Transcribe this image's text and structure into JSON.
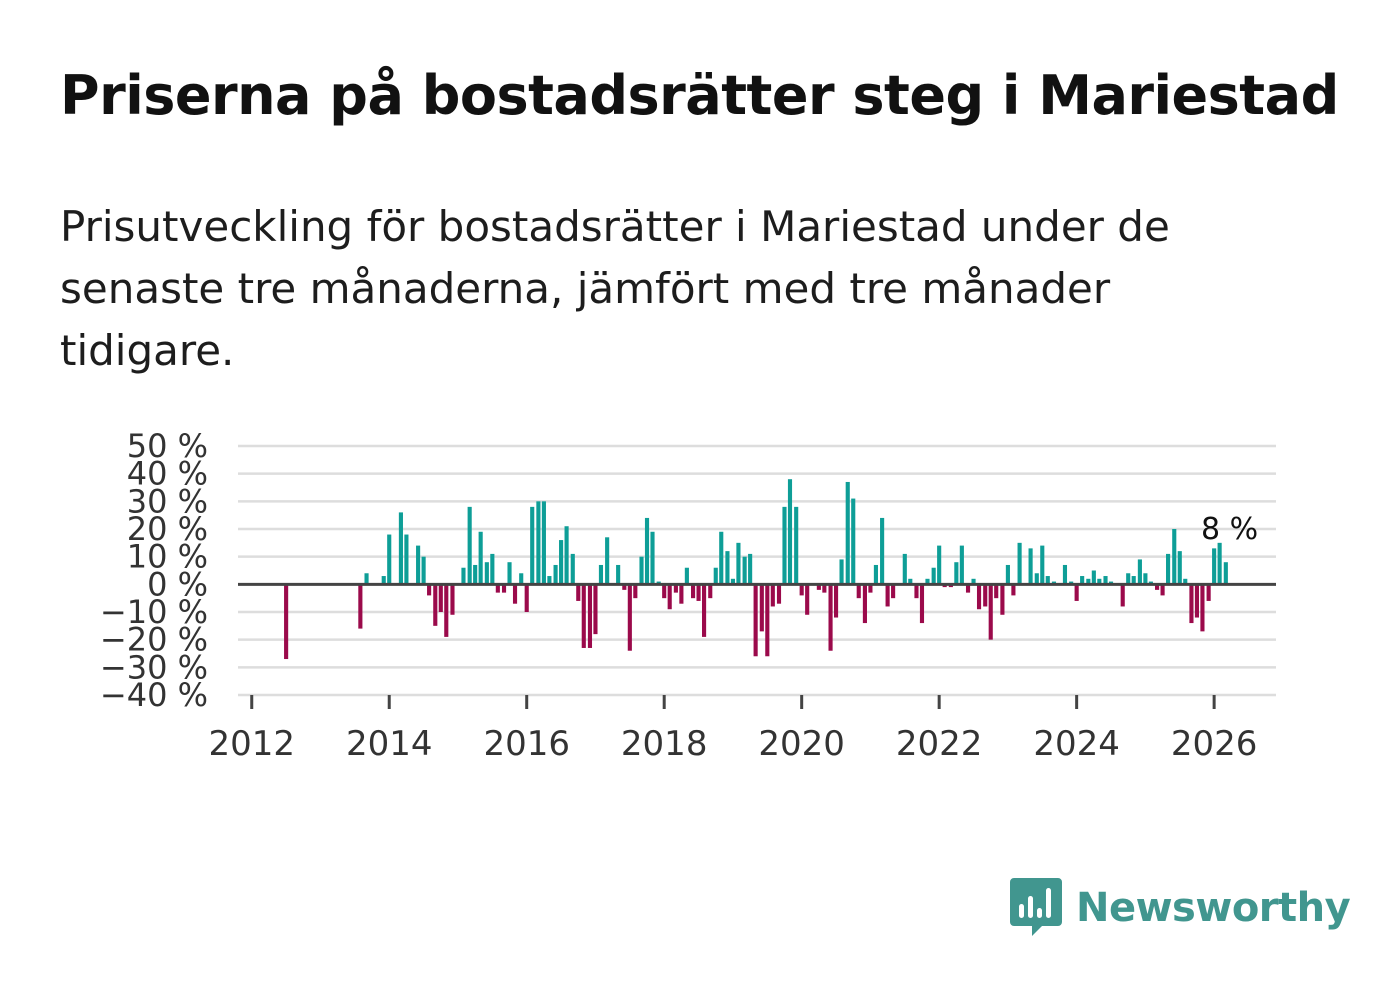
{
  "title": "Priserna på bostadsrätter steg i Mariestad",
  "subtitle": "Prisutveckling för bostadsrätter i Mariestad under de senaste tre månaderna, jämfört med tre månader tidigare.",
  "brand": {
    "name": "Newsworthy",
    "icon": "bar-chart-speech-bubble-icon",
    "color": "#41968f"
  },
  "colors": {
    "positive": "#0e9e97",
    "negative": "#9b0a4b",
    "grid": "#dddddd",
    "zero": "#444444",
    "text": "#333333"
  },
  "chart_data": {
    "type": "bar",
    "title": "Priserna på bostadsrätter steg i Mariestad",
    "ylabel": "",
    "xlabel": "",
    "ylim": [
      -40,
      50
    ],
    "xlim": [
      2011.8,
      2026.9
    ],
    "yticks": [
      -40,
      -30,
      -20,
      -10,
      0,
      10,
      20,
      30,
      40,
      50
    ],
    "ytick_labels": [
      "−40 %",
      "−30 %",
      "−20 %",
      "−10 %",
      "0 %",
      "10 %",
      "20 %",
      "30 %",
      "40 %",
      "50 %"
    ],
    "xticks": [
      2012,
      2014,
      2016,
      2018,
      2020,
      2022,
      2024,
      2026
    ],
    "xtick_labels": [
      "2012",
      "2014",
      "2016",
      "2018",
      "2020",
      "2022",
      "2024",
      "2026"
    ],
    "annotation": {
      "text": "8 %",
      "x": 2026.08,
      "y": 8
    },
    "grid": true,
    "series": [
      {
        "name": "Prisutveckling",
        "points": [
          [
            2012.5,
            -27
          ],
          [
            2013.58,
            -16
          ],
          [
            2013.67,
            4
          ],
          [
            2013.92,
            3
          ],
          [
            2014.0,
            18
          ],
          [
            2014.17,
            26
          ],
          [
            2014.25,
            18
          ],
          [
            2014.42,
            14
          ],
          [
            2014.5,
            10
          ],
          [
            2014.58,
            -4
          ],
          [
            2014.67,
            -15
          ],
          [
            2014.75,
            -10
          ],
          [
            2014.83,
            -19
          ],
          [
            2014.92,
            -11
          ],
          [
            2015.08,
            6
          ],
          [
            2015.17,
            28
          ],
          [
            2015.25,
            7
          ],
          [
            2015.33,
            19
          ],
          [
            2015.42,
            8
          ],
          [
            2015.5,
            11
          ],
          [
            2015.58,
            -3
          ],
          [
            2015.67,
            -3
          ],
          [
            2015.75,
            8
          ],
          [
            2015.83,
            -7
          ],
          [
            2015.92,
            4
          ],
          [
            2016.0,
            -10
          ],
          [
            2016.08,
            28
          ],
          [
            2016.17,
            30
          ],
          [
            2016.25,
            30
          ],
          [
            2016.33,
            3
          ],
          [
            2016.42,
            7
          ],
          [
            2016.5,
            16
          ],
          [
            2016.58,
            21
          ],
          [
            2016.67,
            11
          ],
          [
            2016.75,
            -6
          ],
          [
            2016.83,
            -23
          ],
          [
            2016.92,
            -23
          ],
          [
            2017.0,
            -18
          ],
          [
            2017.08,
            7
          ],
          [
            2017.17,
            17
          ],
          [
            2017.33,
            7
          ],
          [
            2017.42,
            -2
          ],
          [
            2017.5,
            -24
          ],
          [
            2017.58,
            -5
          ],
          [
            2017.67,
            10
          ],
          [
            2017.75,
            24
          ],
          [
            2017.83,
            19
          ],
          [
            2017.92,
            1
          ],
          [
            2018.0,
            -5
          ],
          [
            2018.08,
            -9
          ],
          [
            2018.17,
            -3
          ],
          [
            2018.25,
            -7
          ],
          [
            2018.33,
            6
          ],
          [
            2018.42,
            -5
          ],
          [
            2018.5,
            -6
          ],
          [
            2018.58,
            -19
          ],
          [
            2018.67,
            -5
          ],
          [
            2018.75,
            6
          ],
          [
            2018.83,
            19
          ],
          [
            2018.92,
            12
          ],
          [
            2019.0,
            2
          ],
          [
            2019.08,
            15
          ],
          [
            2019.17,
            10
          ],
          [
            2019.25,
            11
          ],
          [
            2019.33,
            -26
          ],
          [
            2019.42,
            -17
          ],
          [
            2019.5,
            -26
          ],
          [
            2019.58,
            -8
          ],
          [
            2019.67,
            -7
          ],
          [
            2019.75,
            28
          ],
          [
            2019.83,
            38
          ],
          [
            2019.92,
            28
          ],
          [
            2020.0,
            -4
          ],
          [
            2020.08,
            -11
          ],
          [
            2020.25,
            -2
          ],
          [
            2020.33,
            -3
          ],
          [
            2020.42,
            -24
          ],
          [
            2020.5,
            -12
          ],
          [
            2020.58,
            9
          ],
          [
            2020.67,
            37
          ],
          [
            2020.75,
            31
          ],
          [
            2020.83,
            -5
          ],
          [
            2020.92,
            -14
          ],
          [
            2021.0,
            -3
          ],
          [
            2021.08,
            7
          ],
          [
            2021.17,
            24
          ],
          [
            2021.25,
            -8
          ],
          [
            2021.33,
            -5
          ],
          [
            2021.5,
            11
          ],
          [
            2021.58,
            2
          ],
          [
            2021.67,
            -5
          ],
          [
            2021.75,
            -14
          ],
          [
            2021.83,
            2
          ],
          [
            2021.92,
            6
          ],
          [
            2022.0,
            14
          ],
          [
            2022.08,
            -1
          ],
          [
            2022.17,
            -1
          ],
          [
            2022.25,
            8
          ],
          [
            2022.33,
            14
          ],
          [
            2022.42,
            -3
          ],
          [
            2022.5,
            2
          ],
          [
            2022.58,
            -9
          ],
          [
            2022.67,
            -8
          ],
          [
            2022.75,
            -20
          ],
          [
            2022.83,
            -5
          ],
          [
            2022.92,
            -11
          ],
          [
            2023.0,
            7
          ],
          [
            2023.08,
            -4
          ],
          [
            2023.17,
            15
          ],
          [
            2023.33,
            13
          ],
          [
            2023.42,
            4
          ],
          [
            2023.5,
            14
          ],
          [
            2023.58,
            3
          ],
          [
            2023.67,
            1
          ],
          [
            2023.83,
            7
          ],
          [
            2023.92,
            1
          ],
          [
            2024.0,
            -6
          ],
          [
            2024.08,
            3
          ],
          [
            2024.17,
            2
          ],
          [
            2024.25,
            5
          ],
          [
            2024.33,
            2
          ],
          [
            2024.42,
            3
          ],
          [
            2024.5,
            1
          ],
          [
            2024.67,
            -8
          ],
          [
            2024.75,
            4
          ],
          [
            2024.83,
            3
          ],
          [
            2024.92,
            9
          ],
          [
            2025.0,
            4
          ],
          [
            2025.08,
            1
          ],
          [
            2025.17,
            -2
          ],
          [
            2025.25,
            -4
          ],
          [
            2025.33,
            11
          ],
          [
            2025.42,
            20
          ],
          [
            2025.5,
            12
          ],
          [
            2025.58,
            2
          ],
          [
            2025.67,
            -14
          ],
          [
            2025.75,
            -12
          ],
          [
            2025.83,
            -17
          ],
          [
            2025.92,
            -6
          ],
          [
            2026.0,
            13
          ],
          [
            2026.08,
            15
          ],
          [
            2026.17,
            8
          ]
        ]
      }
    ]
  }
}
